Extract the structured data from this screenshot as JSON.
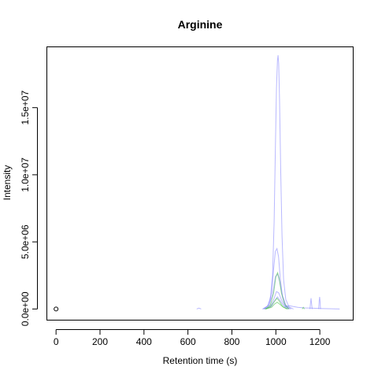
{
  "chart_data": {
    "type": "line",
    "title": "Arginine",
    "xlabel": "Retention time (s)",
    "ylabel": "Intensity",
    "xlim": [
      -40,
      1350
    ],
    "ylim": [
      -800000,
      19500000
    ],
    "x_ticks": [
      0,
      200,
      400,
      600,
      800,
      1000,
      1200
    ],
    "x_tick_labels": [
      "0",
      "200",
      "400",
      "600",
      "800",
      "1000",
      "1200"
    ],
    "y_ticks": [
      0,
      5000000,
      10000000,
      15000000
    ],
    "y_tick_labels": [
      "0.0e+00",
      "5.0e+06",
      "1.0e+07",
      "1.5e+07"
    ],
    "grid": false,
    "legend": "none",
    "colors": {
      "blue": "#8080ff",
      "green": "#40c040",
      "axis": "#000000"
    },
    "point": {
      "x": 0,
      "y": 0
    },
    "series": [
      {
        "color": "blue",
        "x": [
          940,
          960,
          975,
          985,
          992,
          998,
          1003,
          1007,
          1010,
          1013,
          1017,
          1022,
          1028,
          1035,
          1045,
          1060,
          1080
        ],
        "y": [
          0,
          150000,
          700000,
          2500000,
          6500000,
          12000000,
          16500000,
          18500000,
          18900000,
          18300000,
          15500000,
          10500000,
          5500000,
          2200000,
          700000,
          150000,
          0
        ]
      },
      {
        "color": "blue",
        "x": [
          940,
          965,
          980,
          990,
          998,
          1005,
          1012,
          1020,
          1030,
          1045,
          1065
        ],
        "y": [
          0,
          250000,
          1200000,
          3000000,
          4300000,
          4500000,
          3900000,
          2300000,
          900000,
          200000,
          0
        ]
      },
      {
        "color": "blue",
        "x": [
          945,
          970,
          985,
          998,
          1008,
          1018,
          1030,
          1045,
          1070
        ],
        "y": [
          0,
          300000,
          1100000,
          2400000,
          2600000,
          2000000,
          1000000,
          300000,
          0
        ]
      },
      {
        "color": "blue",
        "x": [
          950,
          975,
          990,
          1003,
          1013,
          1025,
          1040,
          1060
        ],
        "y": [
          0,
          200000,
          700000,
          1300000,
          1200000,
          700000,
          250000,
          0
        ]
      },
      {
        "color": "blue",
        "x": [
          950,
          980,
          995,
          1007,
          1020,
          1035,
          1055
        ],
        "y": [
          0,
          200000,
          600000,
          900000,
          600000,
          250000,
          0
        ]
      },
      {
        "color": "blue",
        "x": [
          1040,
          1060,
          1080,
          1100,
          1130,
          1160,
          1200,
          1240,
          1290
        ],
        "y": [
          150000,
          250000,
          180000,
          120000,
          80000,
          60000,
          40000,
          20000,
          0
        ]
      },
      {
        "color": "green",
        "x": [
          955,
          975,
          990,
          1000,
          1008,
          1015,
          1025,
          1040,
          1060
        ],
        "y": [
          0,
          300000,
          1200000,
          2400000,
          2700000,
          2300000,
          1200000,
          350000,
          0
        ]
      },
      {
        "color": "green",
        "x": [
          950,
          975,
          992,
          1005,
          1015,
          1030,
          1050
        ],
        "y": [
          0,
          150000,
          550000,
          800000,
          600000,
          200000,
          0
        ]
      },
      {
        "color": "green",
        "x": [
          955,
          980,
          995,
          1006,
          1018,
          1035,
          1055
        ],
        "y": [
          0,
          120000,
          380000,
          500000,
          350000,
          120000,
          0
        ]
      },
      {
        "color": "blue",
        "x": [
          640,
          645,
          650,
          655,
          660
        ],
        "y": [
          0,
          40000,
          60000,
          40000,
          0
        ]
      },
      {
        "color": "blue",
        "x": [
          1155,
          1158,
          1160,
          1162,
          1165
        ],
        "y": [
          0,
          500000,
          800000,
          500000,
          0
        ]
      },
      {
        "color": "blue",
        "x": [
          1195,
          1197,
          1199,
          1201,
          1203
        ],
        "y": [
          0,
          600000,
          900000,
          600000,
          0
        ]
      },
      {
        "color": "green",
        "x": [
          1120,
          1125,
          1130
        ],
        "y": [
          0,
          120000,
          0
        ]
      }
    ]
  }
}
